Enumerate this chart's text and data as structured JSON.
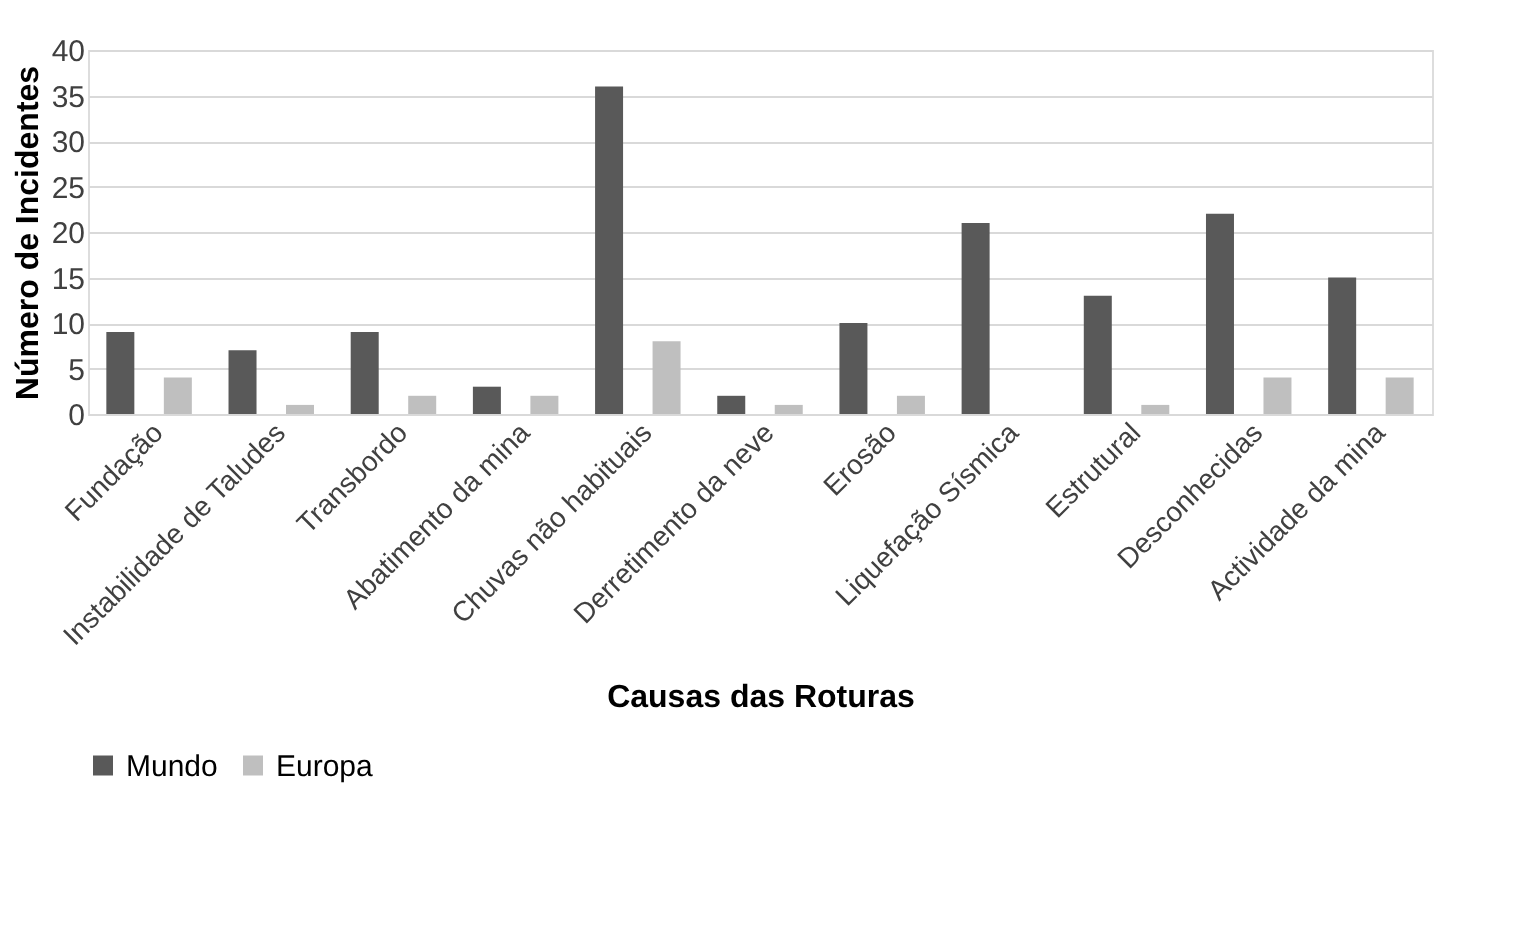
{
  "chart_data": {
    "type": "bar",
    "xlabel": "Causas das Roturas",
    "ylabel": "Número de Incidentes",
    "categories": [
      "Fundação",
      "Instabilidade de Taludes",
      "Transbordo",
      "Abatimento da mina",
      "Chuvas não habituais",
      "Derretimento da neve",
      "Erosão",
      "Liquefação Sísmica",
      "Estrutural",
      "Desconhecidas",
      "Actividade da mina"
    ],
    "series": [
      {
        "name": "Mundo",
        "color": "#595959",
        "values": [
          9,
          7,
          9,
          3,
          36,
          2,
          10,
          21,
          13,
          22,
          15
        ]
      },
      {
        "name": "Europa",
        "color": "#bfbfbf",
        "values": [
          4,
          1,
          2,
          2,
          8,
          1,
          2,
          0,
          1,
          4,
          4
        ]
      }
    ],
    "ylim": [
      0,
      40
    ],
    "yticks": [
      0,
      5,
      10,
      15,
      20,
      25,
      30,
      35,
      40
    ],
    "grid": "y",
    "legend": "bottom"
  }
}
